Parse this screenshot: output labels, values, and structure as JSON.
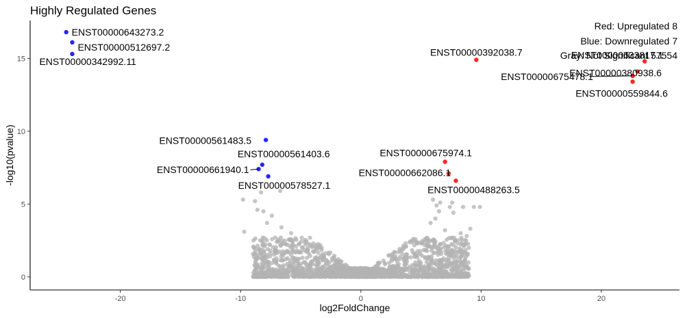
{
  "chart_data": {
    "type": "scatter",
    "title": "Highly Regulated Genes",
    "xlabel": "log2FoldChange",
    "ylabel": "-log10(pvalue)",
    "xlim": [
      -27.5,
      26.5
    ],
    "ylim": [
      -0.9,
      17.6
    ],
    "xticks": [
      -20,
      -10,
      0,
      10,
      20
    ],
    "yticks": [
      0,
      5,
      10,
      15
    ],
    "legend_lines": [
      "Red: Upregulated 8",
      "Blue: Downregulated 7",
      "Gray: Not Significant 57554"
    ],
    "colors": {
      "up": "#ff0000",
      "down": "#0000ff",
      "ns": "#b3b3b3"
    },
    "upregulated": [
      {
        "label": "ENST00000392038.7",
        "x": 9.6,
        "y": 14.9
      },
      {
        "label": "ENST00000380938.6",
        "x": 23.0,
        "y": 14.1
      },
      {
        "label": "ENST00000675478.1",
        "x": 22.6,
        "y": 13.8
      },
      {
        "label": "ENST00000559844.6",
        "x": 22.6,
        "y": 13.4
      },
      {
        "label": "ENST00000633817.1",
        "x": 23.6,
        "y": 14.8
      },
      {
        "label": "ENST00000675974.1",
        "x": 7.0,
        "y": 7.9
      },
      {
        "label": "ENST00000662086.1",
        "x": 7.3,
        "y": 7.1
      },
      {
        "label": "ENST00000488263.5",
        "x": 7.9,
        "y": 6.6
      }
    ],
    "downregulated": [
      {
        "label": "ENST00000643273.2",
        "x": -24.5,
        "y": 16.8
      },
      {
        "label": "ENST00000512697.2",
        "x": -24.0,
        "y": 16.1
      },
      {
        "label": "ENST00000342992.11",
        "x": -24.0,
        "y": 15.3
      },
      {
        "label": "ENST00000561483.5",
        "x": -7.9,
        "y": 9.4
      },
      {
        "label": "ENST00000561403.6",
        "x": -8.2,
        "y": 7.7
      },
      {
        "label": "ENST00000661940.1",
        "x": -8.5,
        "y": 7.4
      },
      {
        "label": "ENST00000578527.1",
        "x": -7.7,
        "y": 6.9
      }
    ],
    "not_significant_outliers": [
      {
        "x": -9.8,
        "y": 5.3
      },
      {
        "x": -8.8,
        "y": 5.2
      },
      {
        "x": -8.3,
        "y": 5.8
      },
      {
        "x": -6.7,
        "y": 5.9
      },
      {
        "x": -9.7,
        "y": 3.1
      },
      {
        "x": -8.6,
        "y": 4.6
      },
      {
        "x": -8.1,
        "y": 4.5
      },
      {
        "x": -7.4,
        "y": 4.2
      },
      {
        "x": -6.6,
        "y": 3.4
      },
      {
        "x": -5.8,
        "y": 3.0
      },
      {
        "x": -7.8,
        "y": 3.7
      },
      {
        "x": 5.8,
        "y": 3.7
      },
      {
        "x": 6.2,
        "y": 4.0
      },
      {
        "x": 6.5,
        "y": 4.5
      },
      {
        "x": 6.3,
        "y": 4.9
      },
      {
        "x": 6.0,
        "y": 5.3
      },
      {
        "x": 6.6,
        "y": 5.1
      },
      {
        "x": 7.4,
        "y": 4.8
      },
      {
        "x": 7.7,
        "y": 4.4
      },
      {
        "x": 7.6,
        "y": 5.1
      },
      {
        "x": 8.5,
        "y": 4.8
      },
      {
        "x": 9.4,
        "y": 4.8
      },
      {
        "x": 9.9,
        "y": 4.8
      },
      {
        "x": 7.0,
        "y": 3.2
      },
      {
        "x": 8.3,
        "y": 3.0
      },
      {
        "x": 8.8,
        "y": 2.8
      },
      {
        "x": 9.1,
        "y": 3.3
      }
    ]
  }
}
